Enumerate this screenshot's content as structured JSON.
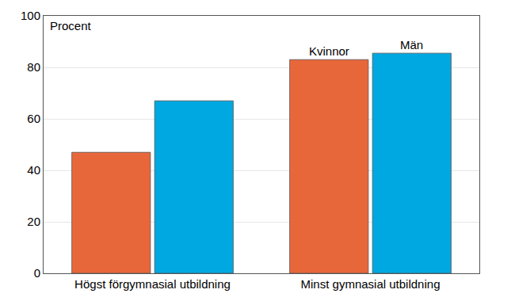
{
  "chart_data": {
    "type": "bar",
    "ylabel": "Procent",
    "categories": [
      "Högst förgymnasial utbildning",
      "Minst gymnasial utbildning"
    ],
    "series": [
      {
        "name": "Kvinnor",
        "color": "#e8673a",
        "values": [
          47,
          83
        ]
      },
      {
        "name": "Män",
        "color": "#00a8e1",
        "values": [
          67,
          85.5
        ]
      }
    ],
    "ylim": [
      0,
      100
    ],
    "yticks": [
      0,
      20,
      40,
      60,
      80,
      100
    ],
    "grid": true
  }
}
